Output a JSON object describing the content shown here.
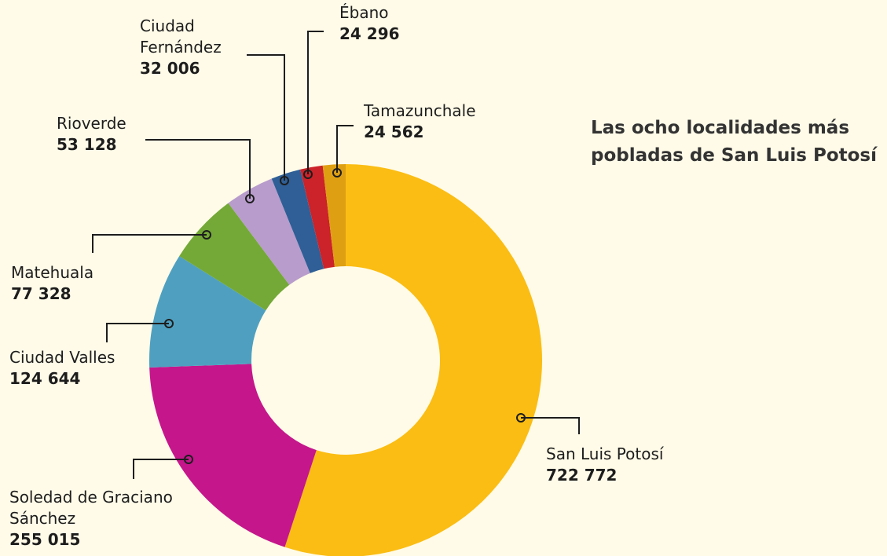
{
  "chart_data": {
    "type": "donut",
    "title": "Las ocho localidades más pobladas de San Luis Potosí",
    "categories": [
      "San Luis Potosí",
      "Soledad de Graciano Sánchez",
      "Ciudad Valles",
      "Matehuala",
      "Rioverde",
      "Ciudad Fernández",
      "Ébano",
      "Tamazunchale"
    ],
    "values": [
      722772,
      255015,
      124644,
      77328,
      53128,
      32006,
      24296,
      24562
    ],
    "value_labels": [
      "722 772",
      "255 015",
      "124 644",
      "77 328",
      "53 128",
      "32 006",
      "24 296",
      "24 562"
    ],
    "colors": [
      "#fbbd13",
      "#c5168c",
      "#4fa0c0",
      "#74a937",
      "#b89ccc",
      "#2f5f96",
      "#cc2229",
      "#dea012"
    ]
  }
}
